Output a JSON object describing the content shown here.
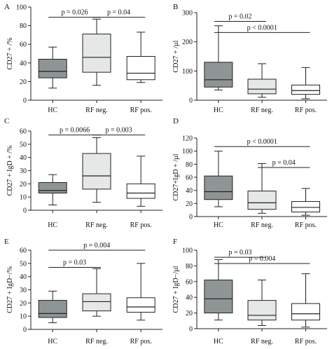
{
  "chart_data": [
    {
      "type": "box",
      "panel": "A",
      "ylabel": "CD27 + /%",
      "ylim": [
        0,
        100
      ],
      "yticks": [
        0,
        20,
        40,
        60,
        80,
        100
      ],
      "categories": [
        "HC",
        "RF neg.",
        "RF pos."
      ],
      "colors": [
        "#8f9495",
        "#e6e8e8",
        "#ffffff"
      ],
      "boxes": [
        {
          "min": 13,
          "q1": 24,
          "median": 31,
          "q3": 44,
          "max": 57
        },
        {
          "min": 16,
          "q1": 30,
          "median": 46,
          "q3": 71,
          "max": 87
        },
        {
          "min": 19,
          "q1": 22,
          "median": 29,
          "q3": 47,
          "max": 73
        }
      ],
      "annotations": [
        {
          "text": "p = 0.026",
          "from": 0,
          "to": 1,
          "y": 89
        },
        {
          "text": "p = 0.04",
          "from": 1,
          "to": 2,
          "y": 89
        }
      ]
    },
    {
      "type": "box",
      "panel": "B",
      "ylabel": "CD27 + /µl",
      "ylim": [
        0,
        300
      ],
      "yticks": [
        0,
        100,
        200,
        300
      ],
      "categories": [
        "HC",
        "RF neg.",
        "RF pos."
      ],
      "colors": [
        "#8f9495",
        "#e6e8e8",
        "#ffffff"
      ],
      "boxes": [
        {
          "min": 35,
          "q1": 45,
          "median": 70,
          "q3": 130,
          "max": 255
        },
        {
          "min": 10,
          "q1": 22,
          "median": 38,
          "q3": 72,
          "max": 125
        },
        {
          "min": 5,
          "q1": 20,
          "median": 33,
          "q3": 52,
          "max": 112
        }
      ],
      "annotations": [
        {
          "text": "p = 0.02",
          "from": 0,
          "to": 1,
          "y": 270
        },
        {
          "text": "p < 0.0001",
          "from": 0,
          "to": 2,
          "y": 232
        }
      ]
    },
    {
      "type": "box",
      "panel": "C",
      "ylabel": "CD27 + IgD + /%",
      "ylim": [
        0,
        60
      ],
      "yticks": [
        0,
        10,
        20,
        30,
        40,
        50,
        60
      ],
      "categories": [
        "HC",
        "RF neg.",
        "RF pos."
      ],
      "colors": [
        "#8f9495",
        "#e6e8e8",
        "#ffffff"
      ],
      "boxes": [
        {
          "min": 4,
          "q1": 13,
          "median": 15,
          "q3": 21,
          "max": 27
        },
        {
          "min": 6,
          "q1": 16,
          "median": 26,
          "q3": 43,
          "max": 55
        },
        {
          "min": 3,
          "q1": 9,
          "median": 13,
          "q3": 20,
          "max": 41
        }
      ],
      "annotations": [
        {
          "text": "p = 0.0066",
          "from": 0,
          "to": 1,
          "y": 57
        },
        {
          "text": "p = 0.003",
          "from": 1,
          "to": 2,
          "y": 57
        }
      ]
    },
    {
      "type": "box",
      "panel": "D",
      "ylabel": "CD27+IgD + /µl",
      "ylim": [
        0,
        120
      ],
      "yticks": [
        0,
        20,
        40,
        60,
        80,
        100,
        120
      ],
      "categories": [
        "HC",
        "RF neg.",
        "RF pos."
      ],
      "colors": [
        "#8f9495",
        "#e6e8e8",
        "#ffffff"
      ],
      "boxes": [
        {
          "min": 15,
          "q1": 26,
          "median": 38,
          "q3": 62,
          "max": 100
        },
        {
          "min": 5,
          "q1": 11,
          "median": 21,
          "q3": 39,
          "max": 81
        },
        {
          "min": 2,
          "q1": 7,
          "median": 14,
          "q3": 23,
          "max": 43
        }
      ],
      "annotations": [
        {
          "text": "p < 0.0001",
          "from": 0,
          "to": 2,
          "y": 107
        },
        {
          "text": "p = 0.04",
          "from": 1,
          "to": 2,
          "y": 75
        }
      ]
    },
    {
      "type": "box",
      "panel": "E",
      "ylabel": "CD27 + IgD−/%",
      "ylim": [
        0,
        60
      ],
      "yticks": [
        0,
        10,
        20,
        30,
        40,
        50,
        60
      ],
      "categories": [
        "HC",
        "RF neg.",
        "RF pos."
      ],
      "colors": [
        "#8f9495",
        "#e6e8e8",
        "#ffffff"
      ],
      "boxes": [
        {
          "min": 5,
          "q1": 9,
          "median": 12,
          "q3": 22,
          "max": 29
        },
        {
          "min": 10,
          "q1": 14,
          "median": 21,
          "q3": 27,
          "max": 46
        },
        {
          "min": 7,
          "q1": 13,
          "median": 17,
          "q3": 24,
          "max": 50
        }
      ],
      "annotations": [
        {
          "text": "p = 0.004",
          "from": 0,
          "to": 2,
          "y": 60
        },
        {
          "text": "p = 0.03",
          "from": 0,
          "to": 1,
          "y": 47
        }
      ]
    },
    {
      "type": "box",
      "panel": "F",
      "ylabel": "CD27 + IgD−/µl",
      "ylim": [
        0,
        100
      ],
      "yticks": [
        0,
        20,
        40,
        60,
        80,
        100
      ],
      "categories": [
        "HC",
        "RF neg.",
        "RF pos."
      ],
      "colors": [
        "#8f9495",
        "#e6e8e8",
        "#ffffff"
      ],
      "boxes": [
        {
          "min": 11,
          "q1": 20,
          "median": 38,
          "q3": 62,
          "max": 88
        },
        {
          "min": 4,
          "q1": 11,
          "median": 17,
          "q3": 36,
          "max": 62
        },
        {
          "min": 2,
          "q1": 11,
          "median": 19,
          "q3": 32,
          "max": 70
        }
      ],
      "annotations": [
        {
          "text": "p = 0.03",
          "from": 0,
          "to": 1,
          "y": 91
        },
        {
          "text": "p = 0.004",
          "from": 0,
          "to": 2,
          "y": 83
        }
      ]
    }
  ]
}
